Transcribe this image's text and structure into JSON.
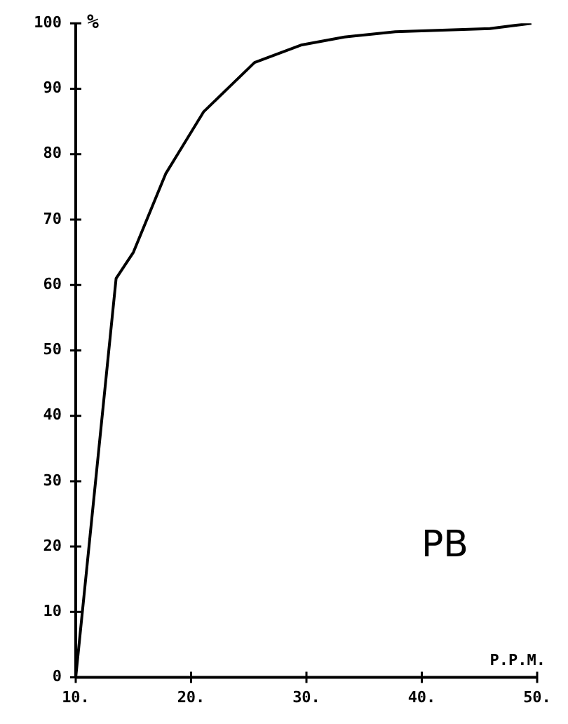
{
  "chart_data": {
    "type": "line",
    "xlabel": "P.P.M.",
    "ylabel": "%",
    "annotations": [
      "PB"
    ],
    "x": [
      10,
      13.5,
      15,
      17.8,
      21.1,
      25.5,
      29.6,
      33.3,
      37.7,
      45.9,
      49.5
    ],
    "series": [
      {
        "color": "#000000",
        "values": [
          0,
          61,
          65,
          77,
          86.5,
          94,
          96.7,
          97.9,
          98.7,
          99.2,
          100
        ]
      }
    ],
    "xlim": [
      10,
      50
    ],
    "xticks": [
      {
        "value": 10,
        "label": "10."
      },
      {
        "value": 20,
        "label": "20."
      },
      {
        "value": 30,
        "label": "30."
      },
      {
        "value": 40,
        "label": "40."
      },
      {
        "value": 50,
        "label": "50."
      }
    ],
    "ylim": [
      0,
      100
    ],
    "yticks": [
      0,
      10,
      20,
      30,
      40,
      50,
      60,
      70,
      80,
      90,
      100
    ],
    "grid": false,
    "legend": false,
    "marker": "none",
    "line_style": "solid"
  }
}
